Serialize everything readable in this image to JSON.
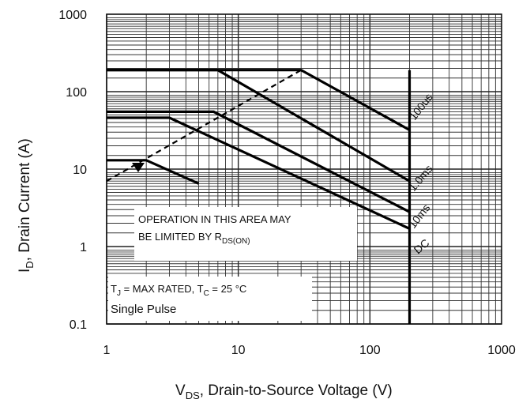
{
  "chart_data": {
    "type": "line",
    "xscale": "log",
    "yscale": "log",
    "xlim": [
      1,
      1000
    ],
    "ylim": [
      0.1,
      1000
    ],
    "grid": true,
    "xlabel": {
      "main": "V",
      "sub": "DS",
      "rest": ", Drain-to-Source Voltage (V)"
    },
    "ylabel": {
      "main": "I",
      "sub": "D",
      "rest": ", Drain Current (A)"
    },
    "x_ticks": [
      {
        "value": 1,
        "label": "1"
      },
      {
        "value": 10,
        "label": "10"
      },
      {
        "value": 100,
        "label": "100"
      },
      {
        "value": 1000,
        "label": "1000"
      }
    ],
    "y_ticks": [
      {
        "value": 1000,
        "label": "1000"
      },
      {
        "value": 100,
        "label": "100"
      },
      {
        "value": 10,
        "label": "10"
      },
      {
        "value": 1,
        "label": "1"
      },
      {
        "value": 0.1,
        "label": "0.1"
      }
    ],
    "series": [
      {
        "name": "100µs",
        "label": "100us",
        "points": [
          [
            1,
            190
          ],
          [
            30,
            190
          ],
          [
            200,
            32
          ]
        ]
      },
      {
        "name": "1.0ms",
        "label": "1.0ms",
        "points": [
          [
            1,
            190
          ],
          [
            7,
            190
          ],
          [
            200,
            7
          ]
        ]
      },
      {
        "name": "10ms",
        "label": "10ms",
        "points": [
          [
            1,
            55
          ],
          [
            6.5,
            55
          ],
          [
            200,
            2.8
          ]
        ]
      },
      {
        "name": "DC",
        "label": "DC",
        "points": [
          [
            1,
            46
          ],
          [
            3,
            46
          ],
          [
            200,
            1.7
          ]
        ]
      },
      {
        "name": "DC-lower",
        "label": "",
        "points": [
          [
            1,
            13
          ],
          [
            2,
            13
          ],
          [
            5,
            6.5
          ]
        ]
      },
      {
        "name": "VDS-max",
        "label": "",
        "points": [
          [
            200,
            190
          ],
          [
            200,
            0.1
          ]
        ]
      }
    ],
    "rds_on_limit": {
      "points": [
        [
          1,
          7
        ],
        [
          30,
          190
        ]
      ],
      "style": "dashed"
    },
    "annotations": {
      "operation_line1": "OPERATION IN THIS AREA MAY",
      "operation_line2_main": "BE LIMITED BY R",
      "operation_line2_sub": "DS(ON)",
      "tj_main": "T",
      "tj_sub": "J",
      "tj_rest": " = MAX RATED,  T",
      "tc_sub": "C",
      "tc_rest": " = 25 °C",
      "pulse": "Single Pulse"
    }
  }
}
